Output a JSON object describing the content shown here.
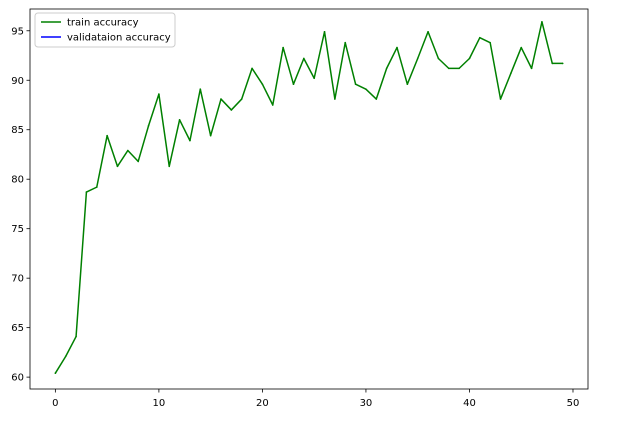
{
  "chart_data": {
    "type": "line",
    "title": "",
    "xlabel": "",
    "ylabel": "",
    "xlim": [
      -2.45,
      51.45
    ],
    "ylim": [
      58.8,
      97.2
    ],
    "grid": false,
    "legend_position": "top-left",
    "x_ticks": [
      0,
      10,
      20,
      30,
      40,
      50
    ],
    "x_tick_labels": [
      "0",
      "10",
      "20",
      "30",
      "40",
      "50"
    ],
    "y_ticks": [
      60,
      65,
      70,
      75,
      80,
      85,
      90,
      95
    ],
    "y_tick_labels": [
      "60",
      "65",
      "70",
      "75",
      "80",
      "85",
      "90",
      "95"
    ],
    "series": [
      {
        "name": "train accuracy",
        "color": "#008000",
        "x": [
          0,
          1,
          2,
          3,
          4,
          5,
          6,
          7,
          8,
          9,
          10,
          11,
          12,
          13,
          14,
          15,
          16,
          17,
          18,
          19,
          20,
          21,
          22,
          23,
          24,
          25,
          26,
          27,
          28,
          29,
          30,
          31,
          32,
          33,
          34,
          35,
          36,
          37,
          38,
          39,
          40,
          41,
          42,
          43,
          44,
          45,
          46,
          47,
          48,
          49
        ],
        "values": [
          60.4,
          62.1,
          64.1,
          78.7,
          79.2,
          84.4,
          81.3,
          82.9,
          81.8,
          85.4,
          88.6,
          81.3,
          86.0,
          83.9,
          89.1,
          84.4,
          88.1,
          87.0,
          88.1,
          91.2,
          89.6,
          87.5,
          93.3,
          89.6,
          92.2,
          90.2,
          94.9,
          88.1,
          93.8,
          89.6,
          89.1,
          88.1,
          91.2,
          93.3,
          89.6,
          92.2,
          94.9,
          92.2,
          91.2,
          91.2,
          92.2,
          94.3,
          93.8,
          88.1,
          90.7,
          93.3,
          91.2,
          95.9,
          91.7,
          91.7
        ]
      },
      {
        "name": "validataion accuracy",
        "color": "#0000ff",
        "x": [],
        "values": []
      }
    ]
  }
}
